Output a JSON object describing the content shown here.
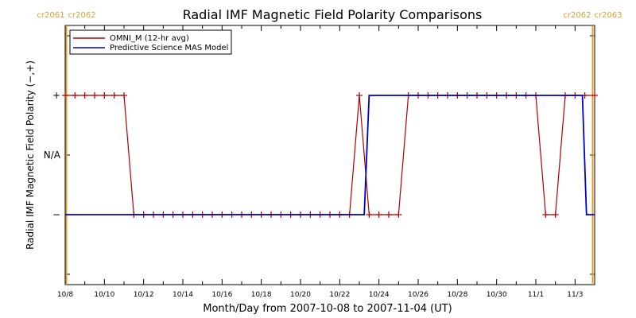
{
  "chart_data": {
    "type": "line",
    "title": "Radial IMF Magnetic Field Polarity Comparisons",
    "xlabel": "Month/Day from 2007-10-08 to 2007-11-04 (UT)",
    "ylabel": "Radial IMF Magnetic Field Polarity (−,+)",
    "x_tick_labels": [
      "10/8",
      "10/10",
      "10/12",
      "10/14",
      "10/16",
      "10/18",
      "10/20",
      "10/22",
      "10/24",
      "10/26",
      "10/28",
      "10/30",
      "11/1",
      "11/3"
    ],
    "y_tick_labels": [
      "+",
      "N/A",
      "−"
    ],
    "xlim": [
      "2007-10-08",
      "2007-11-04"
    ],
    "legend": {
      "placement": "top-left"
    },
    "carrington_markers": [
      {
        "left": "cr2061",
        "right": "cr2062",
        "date": "2007-10-08",
        "color": "#e0a030"
      },
      {
        "left": "cr2062",
        "right": "cr2063",
        "date": "2007-11-04",
        "color": "#e0a030"
      }
    ],
    "series": [
      {
        "name": "OMNI_M (12-hr avg)",
        "color": "#b00000",
        "marker": "+",
        "points": [
          [
            "2007-10-08 00:00",
            1
          ],
          [
            "2007-10-08 12:00",
            1
          ],
          [
            "2007-10-09 00:00",
            1
          ],
          [
            "2007-10-09 12:00",
            1
          ],
          [
            "2007-10-10 00:00",
            1
          ],
          [
            "2007-10-10 12:00",
            1
          ],
          [
            "2007-10-11 00:00",
            1
          ],
          [
            "2007-10-11 12:00",
            -1
          ],
          [
            "2007-10-12 00:00",
            -1
          ],
          [
            "2007-10-12 12:00",
            -1
          ],
          [
            "2007-10-13 00:00",
            -1
          ],
          [
            "2007-10-13 12:00",
            -1
          ],
          [
            "2007-10-14 00:00",
            -1
          ],
          [
            "2007-10-14 12:00",
            -1
          ],
          [
            "2007-10-15 00:00",
            -1
          ],
          [
            "2007-10-15 12:00",
            -1
          ],
          [
            "2007-10-16 00:00",
            -1
          ],
          [
            "2007-10-16 12:00",
            -1
          ],
          [
            "2007-10-17 00:00",
            -1
          ],
          [
            "2007-10-17 12:00",
            -1
          ],
          [
            "2007-10-18 00:00",
            -1
          ],
          [
            "2007-10-18 12:00",
            -1
          ],
          [
            "2007-10-19 00:00",
            -1
          ],
          [
            "2007-10-19 12:00",
            -1
          ],
          [
            "2007-10-20 00:00",
            -1
          ],
          [
            "2007-10-20 12:00",
            -1
          ],
          [
            "2007-10-21 00:00",
            -1
          ],
          [
            "2007-10-21 12:00",
            -1
          ],
          [
            "2007-10-22 00:00",
            -1
          ],
          [
            "2007-10-22 12:00",
            -1
          ],
          [
            "2007-10-23 00:00",
            1
          ],
          [
            "2007-10-23 12:00",
            -1
          ],
          [
            "2007-10-24 00:00",
            -1
          ],
          [
            "2007-10-24 12:00",
            -1
          ],
          [
            "2007-10-25 00:00",
            -1
          ],
          [
            "2007-10-25 12:00",
            1
          ],
          [
            "2007-10-26 00:00",
            1
          ],
          [
            "2007-10-26 12:00",
            1
          ],
          [
            "2007-10-27 00:00",
            1
          ],
          [
            "2007-10-27 12:00",
            1
          ],
          [
            "2007-10-28 00:00",
            1
          ],
          [
            "2007-10-28 12:00",
            1
          ],
          [
            "2007-10-29 00:00",
            1
          ],
          [
            "2007-10-29 12:00",
            1
          ],
          [
            "2007-10-30 00:00",
            1
          ],
          [
            "2007-10-30 12:00",
            1
          ],
          [
            "2007-10-31 00:00",
            1
          ],
          [
            "2007-10-31 12:00",
            1
          ],
          [
            "2007-11-01 00:00",
            1
          ],
          [
            "2007-11-01 12:00",
            -1
          ],
          [
            "2007-11-02 00:00",
            -1
          ],
          [
            "2007-11-02 12:00",
            1
          ],
          [
            "2007-11-03 00:00",
            1
          ],
          [
            "2007-11-03 12:00",
            1
          ],
          [
            "2007-11-04 00:00",
            1
          ]
        ]
      },
      {
        "name": "Predictive Science MAS Model",
        "color": "#0000cc",
        "marker": "none",
        "points": [
          [
            "2007-10-08 00:00",
            -1
          ],
          [
            "2007-10-23 06:00",
            -1
          ],
          [
            "2007-10-23 12:00",
            1
          ],
          [
            "2007-11-03 09:00",
            1
          ],
          [
            "2007-11-03 14:00",
            -1
          ],
          [
            "2007-11-04 00:00",
            -1
          ]
        ]
      }
    ]
  }
}
